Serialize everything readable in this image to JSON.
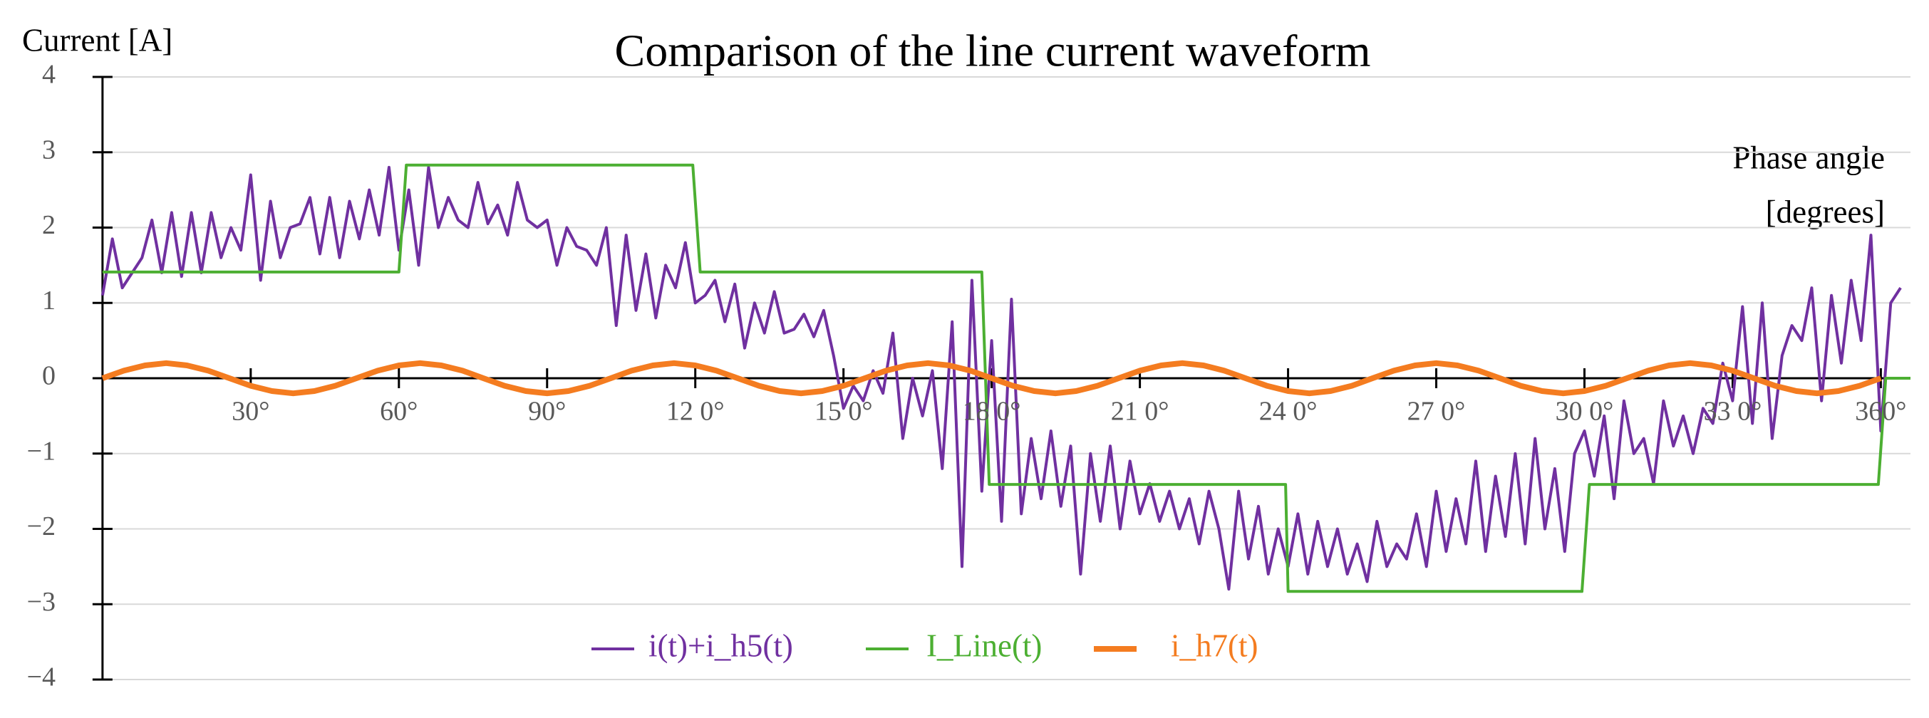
{
  "chart_data": {
    "type": "line",
    "title": "Comparison of the line current waveform",
    "y_label": "Current [A]",
    "x_label": [
      "Phase angle",
      "[degrees]"
    ],
    "xlim": [
      -2,
      366
    ],
    "ylim": [
      -4,
      4
    ],
    "xticks": [
      {
        "value": 30,
        "label": "30°"
      },
      {
        "value": 60,
        "label": "60°"
      },
      {
        "value": 90,
        "label": "90°"
      },
      {
        "value": 120,
        "label": "12 0°"
      },
      {
        "value": 150,
        "label": "15 0°"
      },
      {
        "value": 180,
        "label": "18 0°"
      },
      {
        "value": 210,
        "label": "21 0°"
      },
      {
        "value": 240,
        "label": "24 0°"
      },
      {
        "value": 270,
        "label": "27 0°"
      },
      {
        "value": 300,
        "label": "30 0°"
      },
      {
        "value": 330,
        "label": "33 0°"
      },
      {
        "value": 360,
        "label": "360°"
      }
    ],
    "yticks": [
      {
        "value": -4,
        "label": "−4"
      },
      {
        "value": -3,
        "label": "−3"
      },
      {
        "value": -2,
        "label": "−2"
      },
      {
        "value": -1,
        "label": "−1"
      },
      0,
      1,
      2,
      3,
      4
    ],
    "grid": true,
    "legend": "bottom",
    "series": [
      {
        "name": "i(t)+i_h5(t)",
        "color": "#7030a0",
        "x": [
          0,
          2,
          4,
          6,
          8,
          10,
          12,
          14,
          16,
          18,
          20,
          22,
          24,
          26,
          28,
          30,
          32,
          34,
          36,
          38,
          40,
          42,
          44,
          46,
          48,
          50,
          52,
          54,
          56,
          58,
          60,
          62,
          64,
          66,
          68,
          70,
          72,
          74,
          76,
          78,
          80,
          82,
          84,
          86,
          88,
          90,
          92,
          94,
          96,
          98,
          100,
          102,
          104,
          106,
          108,
          110,
          112,
          114,
          116,
          118,
          120,
          122,
          124,
          126,
          128,
          130,
          132,
          134,
          136,
          138,
          140,
          142,
          144,
          146,
          148,
          150,
          152,
          154,
          156,
          158,
          160,
          162,
          164,
          166,
          168,
          170,
          172,
          174,
          176,
          178,
          180,
          182,
          184,
          186,
          188,
          190,
          192,
          194,
          196,
          198,
          200,
          202,
          204,
          206,
          208,
          210,
          212,
          214,
          216,
          218,
          220,
          222,
          224,
          226,
          228,
          230,
          232,
          234,
          236,
          238,
          240,
          242,
          244,
          246,
          248,
          250,
          252,
          254,
          256,
          258,
          260,
          262,
          264,
          266,
          268,
          270,
          272,
          274,
          276,
          278,
          280,
          282,
          284,
          286,
          288,
          290,
          292,
          294,
          296,
          298,
          300,
          302,
          304,
          306,
          308,
          310,
          312,
          314,
          316,
          318,
          320,
          322,
          324,
          326,
          328,
          330,
          332,
          334,
          336,
          338,
          340,
          342,
          344,
          346,
          348,
          350,
          352,
          354,
          356,
          358,
          360,
          362,
          364
        ],
        "values": [
          1.1,
          1.85,
          1.2,
          1.4,
          1.6,
          2.1,
          1.4,
          2.2,
          1.35,
          2.2,
          1.4,
          2.2,
          1.6,
          2.0,
          1.7,
          2.7,
          1.3,
          2.35,
          1.6,
          2.0,
          2.05,
          2.4,
          1.65,
          2.4,
          1.6,
          2.35,
          1.85,
          2.5,
          1.9,
          2.8,
          1.7,
          2.5,
          1.5,
          2.8,
          2.0,
          2.4,
          2.1,
          2.0,
          2.6,
          2.05,
          2.3,
          1.9,
          2.6,
          2.1,
          2.0,
          2.1,
          1.5,
          2.0,
          1.75,
          1.7,
          1.5,
          2.0,
          0.7,
          1.9,
          0.9,
          1.65,
          0.8,
          1.5,
          1.2,
          1.8,
          1.0,
          1.1,
          1.3,
          0.75,
          1.25,
          0.4,
          1.0,
          0.6,
          1.15,
          0.6,
          0.65,
          0.85,
          0.55,
          0.9,
          0.3,
          -0.4,
          -0.1,
          -0.3,
          0.1,
          -0.2,
          0.6,
          -0.8,
          0.0,
          -0.5,
          0.1,
          -1.2,
          0.75,
          -2.5,
          1.3,
          -1.5,
          0.5,
          -1.9,
          1.05,
          -1.8,
          -0.8,
          -1.6,
          -0.7,
          -1.7,
          -0.9,
          -2.6,
          -1.0,
          -1.9,
          -0.9,
          -2.0,
          -1.1,
          -1.8,
          -1.4,
          -1.9,
          -1.5,
          -2.0,
          -1.6,
          -2.2,
          -1.5,
          -2.0,
          -2.8,
          -1.5,
          -2.4,
          -1.7,
          -2.6,
          -2.0,
          -2.5,
          -1.8,
          -2.6,
          -1.9,
          -2.5,
          -2.0,
          -2.6,
          -2.2,
          -2.7,
          -1.9,
          -2.5,
          -2.2,
          -2.4,
          -1.8,
          -2.5,
          -1.5,
          -2.3,
          -1.6,
          -2.2,
          -1.1,
          -2.3,
          -1.3,
          -2.1,
          -1.0,
          -2.2,
          -0.8,
          -2.0,
          -1.2,
          -2.3,
          -1.0,
          -0.7,
          -1.3,
          -0.5,
          -1.6,
          -0.3,
          -1.0,
          -0.8,
          -1.4,
          -0.3,
          -0.9,
          -0.5,
          -1.0,
          -0.4,
          -0.6,
          0.2,
          -0.3,
          0.95,
          -0.6,
          1.0,
          -0.8,
          0.3,
          0.7,
          0.5,
          1.2,
          -0.3,
          1.1,
          0.2,
          1.3,
          0.5,
          1.9,
          -0.7,
          1.0,
          1.2
        ]
      },
      {
        "name": "I_Line(t)",
        "color": "#4caf32",
        "x": [
          0,
          60,
          61.5,
          119.5,
          121,
          178,
          179.5,
          239.5,
          240,
          299.5,
          301,
          359.5,
          361,
          366
        ],
        "values": [
          1.41,
          1.41,
          2.83,
          2.83,
          1.41,
          1.41,
          -1.41,
          -1.41,
          -2.83,
          -2.83,
          -1.41,
          -1.41,
          0,
          0
        ]
      },
      {
        "name": "i_h7(t)",
        "color": "#f47c20",
        "x": [
          0,
          4.3,
          8.6,
          12.9,
          17.1,
          21.4,
          25.7,
          30,
          34.3,
          38.6,
          42.9,
          47.1,
          51.4,
          55.7,
          60,
          64.3,
          68.6,
          72.9,
          77.1,
          81.4,
          85.7,
          90,
          94.3,
          98.6,
          102.9,
          107.1,
          111.4,
          115.7,
          120,
          124.3,
          128.6,
          132.9,
          137.1,
          141.4,
          145.7,
          150,
          154.3,
          158.6,
          162.9,
          167.1,
          171.4,
          175.7,
          180,
          184.3,
          188.6,
          192.9,
          197.1,
          201.4,
          205.7,
          210,
          214.3,
          218.6,
          222.9,
          227.1,
          231.4,
          235.7,
          240,
          244.3,
          248.6,
          252.9,
          257.1,
          261.4,
          265.7,
          270,
          274.3,
          278.6,
          282.9,
          287.1,
          291.4,
          295.7,
          300,
          304.3,
          308.6,
          312.9,
          317.1,
          321.4,
          325.7,
          330,
          334.3,
          338.6,
          342.9,
          347.1,
          351.4,
          355.7,
          360
        ],
        "values": [
          0,
          0.1,
          0.17,
          0.2,
          0.17,
          0.1,
          0,
          -0.1,
          -0.17,
          -0.2,
          -0.17,
          -0.1,
          0,
          0.1,
          0.17,
          0.2,
          0.17,
          0.1,
          0,
          -0.1,
          -0.17,
          -0.2,
          -0.17,
          -0.1,
          0,
          0.1,
          0.17,
          0.2,
          0.17,
          0.1,
          0,
          -0.1,
          -0.17,
          -0.2,
          -0.17,
          -0.1,
          0,
          0.1,
          0.17,
          0.2,
          0.17,
          0.1,
          0,
          -0.1,
          -0.17,
          -0.2,
          -0.17,
          -0.1,
          0,
          0.1,
          0.17,
          0.2,
          0.17,
          0.1,
          0,
          -0.1,
          -0.17,
          -0.2,
          -0.17,
          -0.1,
          0,
          0.1,
          0.17,
          0.2,
          0.17,
          0.1,
          0,
          -0.1,
          -0.17,
          -0.2,
          -0.17,
          -0.1,
          0,
          0.1,
          0.17,
          0.2,
          0.17,
          0.1,
          0,
          -0.1,
          -0.17,
          -0.2,
          -0.17,
          -0.1,
          0
        ]
      }
    ]
  }
}
